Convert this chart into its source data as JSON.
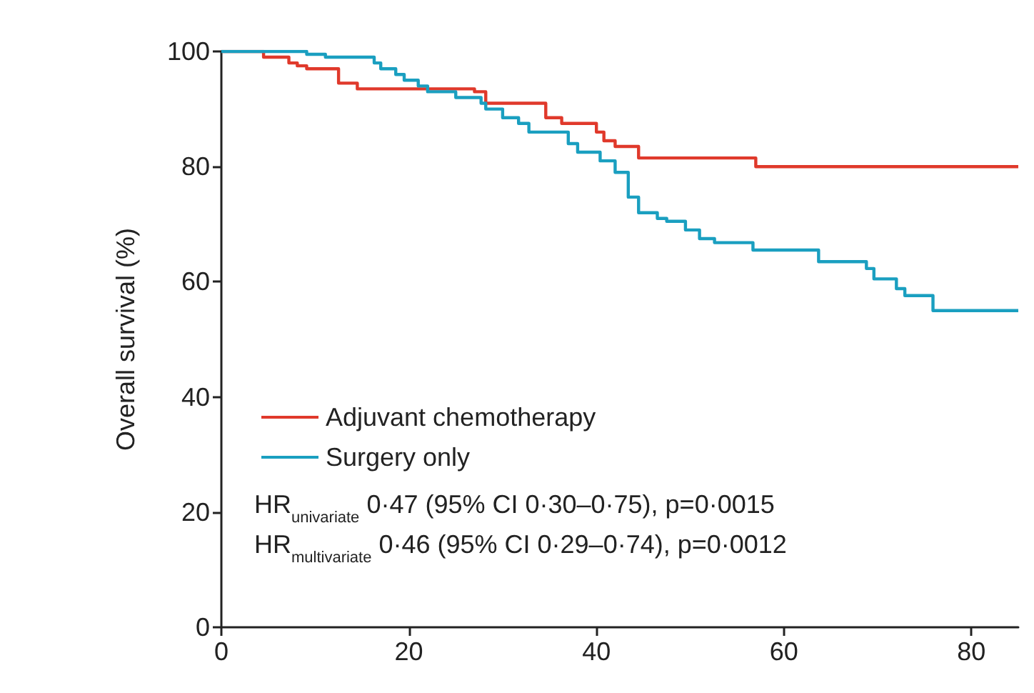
{
  "chart_data": {
    "type": "step",
    "xlabel": null,
    "ylabel": "Overall survival (%)",
    "xlim": [
      0,
      85
    ],
    "xticks": [
      0,
      20,
      40,
      60,
      80
    ],
    "ylim": [
      0,
      100
    ],
    "yticks": [
      0,
      20,
      40,
      60,
      80,
      100
    ],
    "grid": false,
    "legend": "left",
    "marker": "none",
    "line_style": "solid",
    "series": [
      {
        "name": "Adjuvant chemotherapy",
        "color": "#e0392b",
        "x": [
          0,
          4.5,
          7.2,
          8.1,
          9.1,
          12.5,
          14.5,
          27,
          28.2,
          34.6,
          36.3,
          40,
          40.8,
          42,
          44.5,
          57,
          85
        ],
        "values": [
          100,
          99,
          98,
          97.5,
          97,
          94.5,
          93.5,
          93,
          91,
          88.5,
          87.5,
          86,
          84.5,
          83.5,
          81.5,
          80,
          80
        ]
      },
      {
        "name": "Surgery only",
        "color": "#1a9fc0",
        "x": [
          0,
          9.1,
          11.1,
          16.3,
          17,
          18.6,
          19.5,
          21,
          22,
          25,
          27.7,
          28.2,
          30,
          31.7,
          32.8,
          37,
          38,
          40.4,
          42,
          43.4,
          44.5,
          46.5,
          47.5,
          49.5,
          51,
          52.6,
          56.7,
          63.7,
          68.8,
          69.6,
          72,
          72.9,
          75.9,
          85
        ],
        "values": [
          100,
          99.5,
          99,
          98,
          97,
          96,
          95,
          94,
          93,
          92,
          91,
          90,
          88.5,
          87.5,
          86,
          84,
          82.5,
          81,
          79,
          74.7,
          72,
          71,
          70.5,
          69,
          67.5,
          66.8,
          65.5,
          63.5,
          62.3,
          60.5,
          58.8,
          57.6,
          55,
          55
        ]
      }
    ],
    "annotations": [
      "HR$_{univariate}$ 0·47 (95% CI 0·30–0·75), p=0·0015",
      "HR$_{multivariate}$ 0·46 (95% CI 0·29–0·74), p=0·0012"
    ]
  }
}
